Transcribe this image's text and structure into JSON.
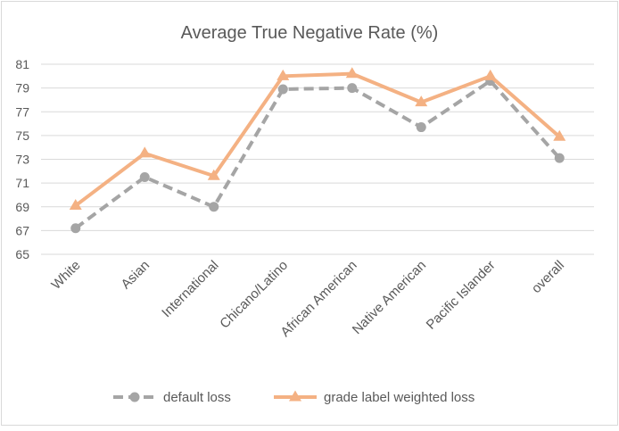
{
  "chart_data": {
    "type": "line",
    "title": "Average True Negative Rate (%)",
    "xlabel": "",
    "ylabel": "",
    "ylim": [
      65,
      81
    ],
    "yticks": [
      65,
      67,
      69,
      71,
      73,
      75,
      77,
      79,
      81
    ],
    "grid": true,
    "legend": "bottom",
    "categories": [
      "White",
      "Asian",
      "International",
      "Chicano/Latino",
      "African American",
      "Native American",
      "Pacific Islander",
      "overall"
    ],
    "series": [
      {
        "name": "default loss",
        "values": [
          67.2,
          71.5,
          69.0,
          78.9,
          79.0,
          75.7,
          79.6,
          73.1
        ],
        "color": "#a5a5a5",
        "marker": "circle",
        "dash": true
      },
      {
        "name": "grade label weighted loss",
        "values": [
          69.1,
          73.5,
          71.6,
          80.0,
          80.2,
          77.8,
          80.0,
          74.9
        ],
        "color": "#f4b183",
        "marker": "triangle",
        "dash": false
      }
    ]
  }
}
